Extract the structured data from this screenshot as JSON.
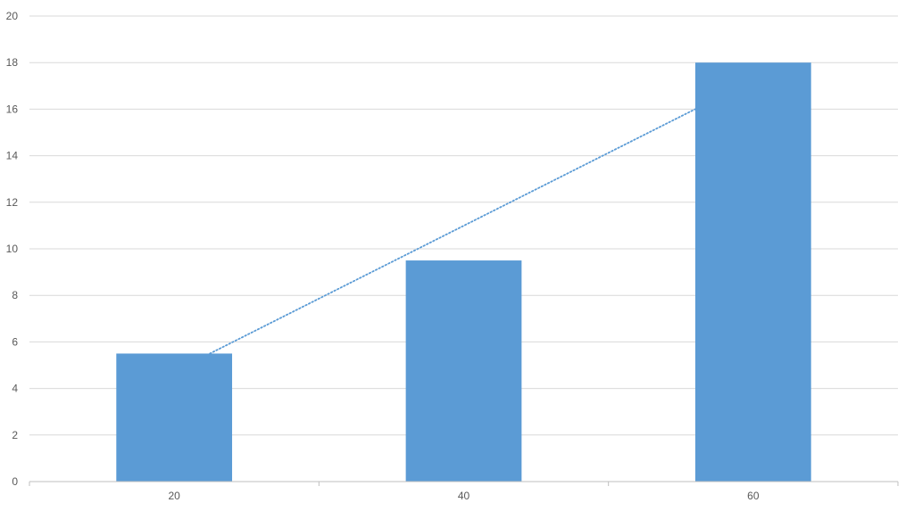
{
  "chart_data": {
    "type": "bar",
    "categories": [
      "20",
      "40",
      "60"
    ],
    "values": [
      5.5,
      9.5,
      18
    ],
    "ylim": [
      0,
      20
    ],
    "ytick_step": 2,
    "yticks": [
      "0",
      "2",
      "4",
      "6",
      "8",
      "10",
      "12",
      "14",
      "16",
      "18",
      "20"
    ],
    "grid": true,
    "legend": "none",
    "trendline": {
      "type": "linear",
      "style": "dotted",
      "x": [
        "20",
        "60"
      ],
      "y": [
        5.5,
        16.0
      ]
    },
    "colors": {
      "bar": "#5b9bd5",
      "trendline": "#5b9bd5",
      "grid": "#d9d9d9",
      "axis": "#bfbfbf",
      "tick_text": "#595959"
    }
  }
}
